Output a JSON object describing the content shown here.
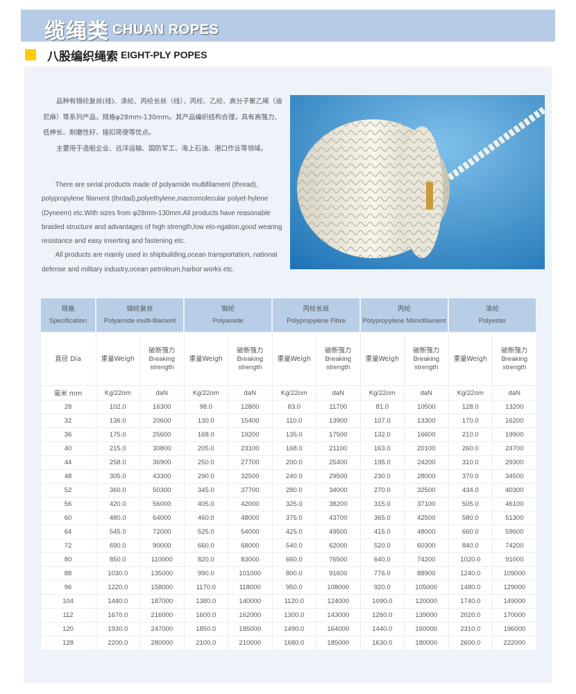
{
  "header": {
    "title_cn": "缆绳类",
    "title_en": "CHUAN ROPES"
  },
  "section": {
    "title_cn": "八股编织绳索",
    "title_en": "EIGHT-PLY POPES",
    "marker_color": "#ffcc00"
  },
  "intro_cn": [
    "品种有锦纶复丝(线)、涤纶、丙纶长丝（线）、丙纶、乙纶、高分子聚乙稀（迪尼麻）等系列产品，规格φ28mm-130mm。其产品编织结构合理，具有高强力、低伸长、耐磨性好、插扣简便等优点。",
    "主要用于造船企业、远洋运输、国防军工、海上石油、港口作业等领域。"
  ],
  "intro_en": [
    "There are serial products made of polyamide multifilament (thread), polypropylene filament (thrdad),polyethylene,macromolecular polyet-hylene (Dyneem) etc.With sizes from φ28mm-130mm.All products have reasonable braided structure and advantages of high strength,low elo-ngation,good wearing resistance and easy  inserting and fastening etc.",
    "All products are mainly used in shipbuilding,ocean transportation, national defense and military industry,ocean petroleum,harbor works etc."
  ],
  "photo": {
    "subject": "coil of white eight-strand braided rope",
    "background_color": "#2f86c6"
  },
  "table": {
    "spec": {
      "cn": "规格",
      "en": "Specification"
    },
    "materials": [
      {
        "cn": "锦纶复丝",
        "en": "Polyamide multi-filament"
      },
      {
        "cn": "锦纶",
        "en": "Polyamide"
      },
      {
        "cn": "丙纶长丝",
        "en": "Polypropylene Fibre"
      },
      {
        "cn": "丙纶",
        "en": "Polypropylene Monofilament"
      },
      {
        "cn": "涤纶",
        "en": "Polyester"
      }
    ],
    "dia_label": "直径 Dia",
    "weight_label": "重量Weigh",
    "strength_label_cn": "破断强力",
    "strength_label_en": "Breaking strength",
    "units": {
      "dia": "毫米 mm",
      "weight": "Kg/22om",
      "strength": "daN"
    },
    "rows": [
      [
        "28",
        "102.0",
        "16300",
        "98.0",
        "12800",
        "83.0",
        "11700",
        "81.0",
        "10500",
        "128.0",
        "13200"
      ],
      [
        "32",
        "136.0",
        "20600",
        "130.0",
        "15400",
        "110.0",
        "13900",
        "107.0",
        "13300",
        "170.0",
        "16200"
      ],
      [
        "36",
        "175.0",
        "25600",
        "168.0",
        "19200",
        "135.0",
        "17500",
        "132.0",
        "16600",
        "210.0",
        "19900"
      ],
      [
        "40",
        "215.0",
        "30800",
        "205.0",
        "23100",
        "168.0",
        "21100",
        "163.0",
        "20100",
        "260.0",
        "24700"
      ],
      [
        "44",
        "258.0",
        "36900",
        "250.0",
        "27700",
        "200.0",
        "25400",
        "195.0",
        "24200",
        "310.0",
        "29300"
      ],
      [
        "48",
        "305.0",
        "43300",
        "290.0",
        "32500",
        "240.0",
        "29500",
        "230.0",
        "28000",
        "370.0",
        "34500"
      ],
      [
        "52",
        "360.0",
        "50300",
        "345.0",
        "37700",
        "280.0",
        "34000",
        "270.0",
        "32500",
        "434.0",
        "40300"
      ],
      [
        "56",
        "420.0",
        "56000",
        "405.0",
        "42000",
        "325.0",
        "38200",
        "315.0",
        "37100",
        "505.0",
        "46100"
      ],
      [
        "60",
        "480.0",
        "64000",
        "460.0",
        "48000",
        "375.0",
        "43700",
        "365.0",
        "42500",
        "580.0",
        "51300"
      ],
      [
        "64",
        "545.0",
        "72000",
        "525.0",
        "54000",
        "425.0",
        "49500",
        "415.0",
        "48000",
        "660.0",
        "59600"
      ],
      [
        "72",
        "690.0",
        "90000",
        "660.0",
        "68000",
        "540.0",
        "62000",
        "520.0",
        "60300",
        "840.0",
        "74200"
      ],
      [
        "80",
        "850.0",
        "110000",
        "820.0",
        "83000",
        "660.0",
        "76500",
        "640.0",
        "74200",
        "1020.0",
        "91000"
      ],
      [
        "88",
        "1030.0",
        "135000",
        "990.0",
        "101000",
        "800.0",
        "91600",
        "776.0",
        "88900",
        "1240.0",
        "109000"
      ],
      [
        "96",
        "1220.0",
        "158000",
        "1170.0",
        "118000",
        "950.0",
        "108000",
        "920.0",
        "105000",
        "1480.0",
        "129000"
      ],
      [
        "104",
        "1440.0",
        "187000",
        "1380.0",
        "140000",
        "1120.0",
        "124000",
        "1090.0",
        "120000",
        "1740.0",
        "149000"
      ],
      [
        "112",
        "1670.0",
        "216000",
        "1600.0",
        "162000",
        "1300.0",
        "143000",
        "1260.0",
        "139000",
        "2020.0",
        "170000"
      ],
      [
        "120",
        "1930.0",
        "247000",
        "1850.0",
        "185000",
        "1490.0",
        "164000",
        "1440.0",
        "160000",
        "2310.0",
        "196000"
      ],
      [
        "128",
        "2200.0",
        "280000",
        "2100.0",
        "210000",
        "1680.0",
        "185000",
        "1630.0",
        "180000",
        "2600.0",
        "222000"
      ]
    ]
  }
}
